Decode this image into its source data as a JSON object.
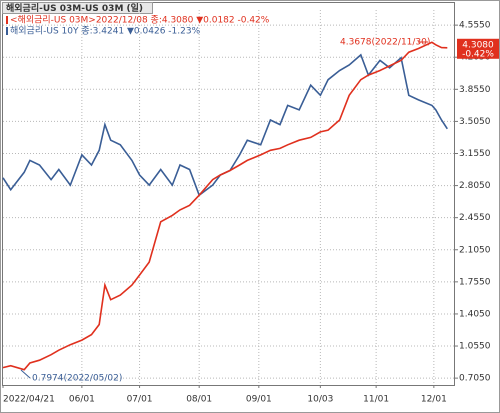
{
  "chart_data": {
    "type": "line",
    "title": "해외금리-US   03M-US 03M (일)",
    "x": [
      "2022-04-21",
      "2022-04-25",
      "2022-05-02",
      "2022-05-05",
      "2022-05-10",
      "2022-05-16",
      "2022-05-20",
      "2022-05-26",
      "2022-06-01",
      "2022-06-06",
      "2022-06-10",
      "2022-06-13",
      "2022-06-16",
      "2022-06-21",
      "2022-06-27",
      "2022-07-01",
      "2022-07-06",
      "2022-07-12",
      "2022-07-18",
      "2022-07-22",
      "2022-07-27",
      "2022-08-01",
      "2022-08-08",
      "2022-08-12",
      "2022-08-17",
      "2022-08-22",
      "2022-08-26",
      "2022-09-02",
      "2022-09-07",
      "2022-09-12",
      "2022-09-16",
      "2022-09-22",
      "2022-09-28",
      "2022-10-03",
      "2022-10-07",
      "2022-10-13",
      "2022-10-18",
      "2022-10-24",
      "2022-10-28",
      "2022-11-03",
      "2022-11-08",
      "2022-11-14",
      "2022-11-18",
      "2022-11-23",
      "2022-11-30",
      "2022-12-02",
      "2022-12-05",
      "2022-12-08"
    ],
    "series": [
      {
        "name": "<해외금리-US 03M>2022/12/08 종:4.3080 ▼0.0182 -0.42%",
        "color": "#e0301e",
        "values": [
          0.82,
          0.84,
          0.7974,
          0.87,
          0.9,
          0.96,
          1.01,
          1.07,
          1.12,
          1.18,
          1.29,
          1.72,
          1.56,
          1.61,
          1.72,
          1.83,
          1.97,
          2.41,
          2.48,
          2.54,
          2.59,
          2.7,
          2.87,
          2.92,
          2.97,
          3.03,
          3.08,
          3.14,
          3.19,
          3.21,
          3.25,
          3.3,
          3.33,
          3.39,
          3.41,
          3.52,
          3.79,
          3.96,
          4.01,
          4.06,
          4.11,
          4.17,
          4.26,
          4.3,
          4.3678,
          4.34,
          4.31,
          4.308
        ]
      },
      {
        "name": "해외금리-US 10Y 종:3.4241 ▼0.0426 -1.23%",
        "color": "#3a5e96",
        "values": [
          2.89,
          2.76,
          2.95,
          3.08,
          3.03,
          2.87,
          2.98,
          2.81,
          3.14,
          3.03,
          3.19,
          3.47,
          3.3,
          3.25,
          3.08,
          2.92,
          2.81,
          2.98,
          2.81,
          3.03,
          2.98,
          2.7,
          2.81,
          2.92,
          2.97,
          3.14,
          3.3,
          3.25,
          3.52,
          3.47,
          3.68,
          3.63,
          3.9,
          3.79,
          3.96,
          4.06,
          4.12,
          4.23,
          4.01,
          4.17,
          4.09,
          4.2,
          3.79,
          3.74,
          3.68,
          3.63,
          3.52,
          3.4241
        ]
      }
    ],
    "annotations": [
      "4.3678(2022/11/30)",
      "0.7974(2022/05/02)"
    ],
    "end_label": [
      "4.3080",
      "-0.42%"
    ],
    "xlim": [
      "2022-04-21",
      "2022-12-12"
    ],
    "xticks": [
      {
        "value": "2022-04-21",
        "label": "2022/04/21"
      },
      {
        "value": "2022-06-01",
        "label": "06/01"
      },
      {
        "value": "2022-07-01",
        "label": "07/01"
      },
      {
        "value": "2022-08-01",
        "label": "08/01"
      },
      {
        "value": "2022-09-01",
        "label": "09/01"
      },
      {
        "value": "2022-10-03",
        "label": "10/03"
      },
      {
        "value": "2022-11-01",
        "label": "11/01"
      },
      {
        "value": "2022-12-01",
        "label": "12/01"
      }
    ],
    "ylim": [
      0.63,
      4.72
    ],
    "yticks": [
      {
        "value": 4.555,
        "label": "4.5550"
      },
      {
        "value": 4.205,
        "label": "4.2050"
      },
      {
        "value": 3.855,
        "label": "3.8550"
      },
      {
        "value": 3.505,
        "label": "3.5050"
      },
      {
        "value": 3.155,
        "label": "3.1550"
      },
      {
        "value": 2.805,
        "label": "2.8050"
      },
      {
        "value": 2.455,
        "label": "2.4550"
      },
      {
        "value": 2.105,
        "label": "2.1050"
      },
      {
        "value": 1.755,
        "label": "1.7550"
      },
      {
        "value": 1.405,
        "label": "1.4050"
      },
      {
        "value": 1.055,
        "label": "1.0550"
      },
      {
        "value": 0.705,
        "label": "0.7050"
      }
    ],
    "grid": true
  }
}
